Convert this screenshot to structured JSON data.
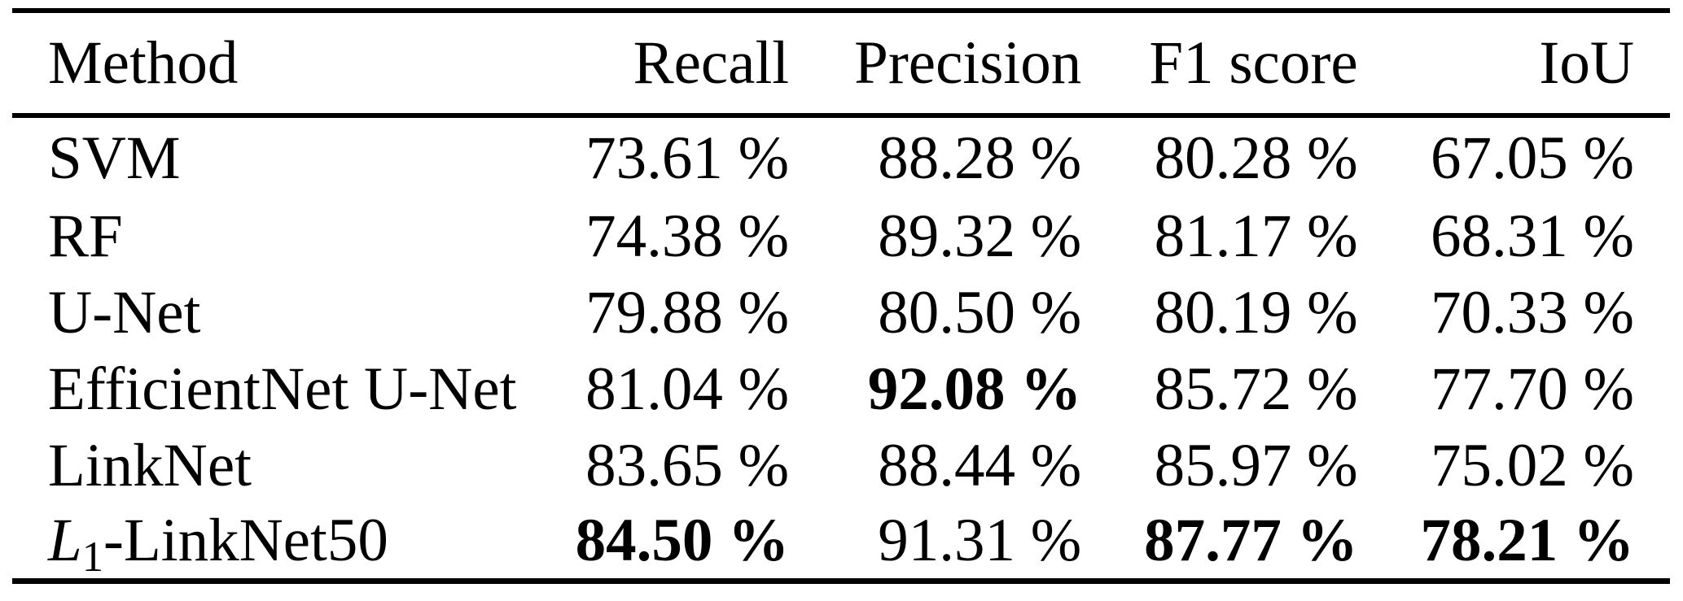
{
  "table": {
    "columns": [
      {
        "label": "Method"
      },
      {
        "label": "Recall"
      },
      {
        "label": "Precision"
      },
      {
        "label": "F1 score"
      },
      {
        "label": "IoU"
      }
    ],
    "rows": [
      {
        "method": "SVM",
        "recall": "73.61 %",
        "precision": "88.28 %",
        "f1": "80.28 %",
        "iou": "67.05 %"
      },
      {
        "method": "RF",
        "recall": "74.38 %",
        "precision": "89.32 %",
        "f1": "81.17 %",
        "iou": "68.31 %"
      },
      {
        "method": "U-Net",
        "recall": "79.88 %",
        "precision": "80.50 %",
        "f1": "80.19 %",
        "iou": "70.33 %"
      },
      {
        "method": "EfficientNet U-Net",
        "recall": "81.04 %",
        "precision": "92.08 %",
        "f1": "85.72 %",
        "iou": "77.70 %"
      },
      {
        "method": "LinkNet",
        "recall": "83.65 %",
        "precision": "88.44 %",
        "f1": "85.97 %",
        "iou": "75.02 %"
      },
      {
        "method_italic": "L",
        "method_sub": "1",
        "method_rest": "-LinkNet50",
        "recall": "84.50 %",
        "precision": "91.31 %",
        "f1": "87.77 %",
        "iou": "78.21 %"
      }
    ],
    "bold_cells": [
      "EfficientNet U-Net / Precision (92.08 %)",
      "L1-LinkNet50 / Recall (84.50 %)",
      "L1-LinkNet50 / F1 score (87.77 %)",
      "L1-LinkNet50 / IoU (78.21 %)"
    ]
  },
  "chart_data": {
    "type": "table",
    "title": "",
    "columns": [
      "Method",
      "Recall",
      "Precision",
      "F1 score",
      "IoU"
    ],
    "unit": "%",
    "rows": [
      [
        "SVM",
        73.61,
        88.28,
        80.28,
        67.05
      ],
      [
        "RF",
        74.38,
        89.32,
        81.17,
        68.31
      ],
      [
        "U-Net",
        79.88,
        80.5,
        80.19,
        70.33
      ],
      [
        "EfficientNet U-Net",
        81.04,
        92.08,
        85.72,
        77.7
      ],
      [
        "LinkNet",
        83.65,
        88.44,
        85.97,
        75.02
      ],
      [
        "L1-LinkNet50",
        84.5,
        91.31,
        87.77,
        78.21
      ]
    ],
    "bold_values": [
      84.5,
      92.08,
      87.77,
      78.21
    ]
  }
}
